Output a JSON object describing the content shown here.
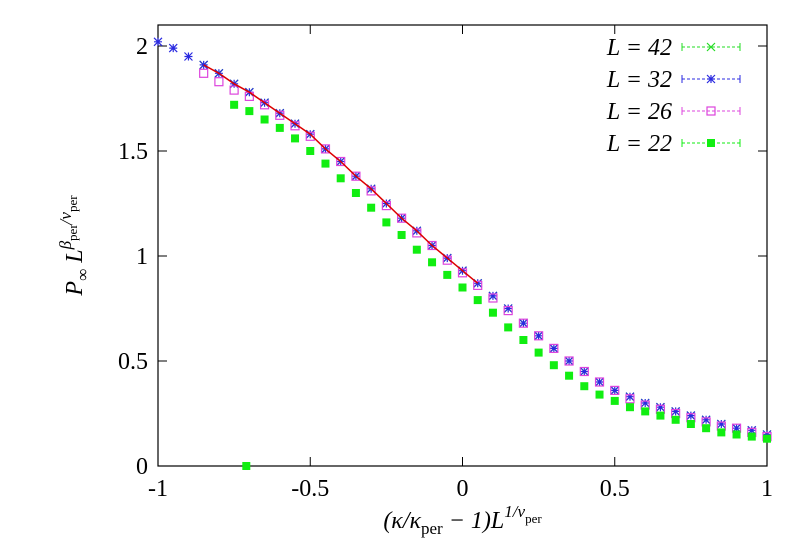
{
  "chart_data": {
    "type": "scatter",
    "xlabel_parts": [
      {
        "text": "(κ/κ",
        "pos": "base"
      },
      {
        "text": "per",
        "pos": "sub"
      },
      {
        "text": " − 1)L",
        "pos": "base"
      },
      {
        "text": "1/ν",
        "pos": "sup"
      },
      {
        "text": "per",
        "pos": "supsub"
      }
    ],
    "ylabel_parts": [
      {
        "text": "P",
        "pos": "base"
      },
      {
        "text": "∞",
        "pos": "sub"
      },
      {
        "text": " L",
        "pos": "base"
      },
      {
        "text": "β",
        "pos": "sup"
      },
      {
        "text": "per",
        "pos": "supsub"
      },
      {
        "text": "/ν",
        "pos": "sup"
      },
      {
        "text": "per",
        "pos": "supsub"
      }
    ],
    "xlim": [
      -1,
      1
    ],
    "xticks": [
      -1,
      -0.5,
      0,
      0.5,
      1
    ],
    "ylim": [
      0,
      2.1
    ],
    "yticks": [
      0,
      0.5,
      1,
      1.5,
      2
    ],
    "legend": "top-right",
    "series": [
      {
        "name": "L = 42",
        "color": "#22dd22",
        "marker": "x",
        "x": [
          -0.85,
          -0.8,
          -0.75,
          -0.7,
          -0.65,
          -0.6,
          -0.55,
          -0.5,
          -0.45,
          -0.4,
          -0.35,
          -0.3,
          -0.25,
          -0.2,
          -0.15,
          -0.1,
          -0.05,
          0,
          0.05,
          0.1,
          0.15,
          0.2,
          0.25,
          0.3,
          0.35,
          0.4,
          0.45,
          0.5,
          0.55,
          0.6,
          0.65,
          0.7,
          0.75,
          0.8,
          0.85,
          0.9,
          0.95,
          1
        ],
        "values": [
          1.91,
          1.87,
          1.82,
          1.78,
          1.73,
          1.68,
          1.63,
          1.58,
          1.51,
          1.45,
          1.38,
          1.32,
          1.25,
          1.18,
          1.12,
          1.05,
          0.99,
          0.93,
          0.87,
          0.81,
          0.75,
          0.68,
          0.62,
          0.56,
          0.5,
          0.45,
          0.4,
          0.36,
          0.33,
          0.3,
          0.28,
          0.26,
          0.24,
          0.22,
          0.2,
          0.18,
          0.17,
          0.15
        ]
      },
      {
        "name": "L = 32",
        "color": "#2a2ae0",
        "marker": "star",
        "x": [
          -1,
          -0.95,
          -0.9,
          -0.85,
          -0.8,
          -0.75,
          -0.7,
          -0.65,
          -0.6,
          -0.55,
          -0.5,
          -0.45,
          -0.4,
          -0.35,
          -0.3,
          -0.25,
          -0.2,
          -0.15,
          -0.1,
          -0.05,
          0,
          0.05,
          0.1,
          0.15,
          0.2,
          0.25,
          0.3,
          0.35,
          0.4,
          0.45,
          0.5,
          0.55,
          0.6,
          0.65,
          0.7,
          0.75,
          0.8,
          0.85,
          0.9,
          0.95,
          1
        ],
        "values": [
          2.02,
          1.99,
          1.95,
          1.91,
          1.87,
          1.82,
          1.78,
          1.73,
          1.68,
          1.63,
          1.58,
          1.51,
          1.45,
          1.38,
          1.32,
          1.25,
          1.18,
          1.12,
          1.05,
          0.99,
          0.93,
          0.87,
          0.81,
          0.75,
          0.68,
          0.62,
          0.56,
          0.5,
          0.45,
          0.4,
          0.36,
          0.33,
          0.3,
          0.28,
          0.26,
          0.24,
          0.22,
          0.2,
          0.18,
          0.17,
          0.15
        ]
      },
      {
        "name": "L = 26",
        "color": "#dd44dd",
        "marker": "square-open",
        "x": [
          -0.85,
          -0.8,
          -0.75,
          -0.7,
          -0.65,
          -0.6,
          -0.55,
          -0.5,
          -0.45,
          -0.4,
          -0.35,
          -0.3,
          -0.25,
          -0.2,
          -0.15,
          -0.1,
          -0.05,
          0,
          0.05,
          0.1,
          0.15,
          0.2,
          0.25,
          0.3,
          0.35,
          0.4,
          0.45,
          0.5,
          0.55,
          0.6,
          0.65,
          0.7,
          0.75,
          0.8,
          0.85,
          0.9,
          0.95,
          1
        ],
        "values": [
          1.87,
          1.83,
          1.79,
          1.76,
          1.72,
          1.67,
          1.62,
          1.57,
          1.51,
          1.45,
          1.38,
          1.31,
          1.24,
          1.18,
          1.11,
          1.05,
          0.98,
          0.92,
          0.86,
          0.8,
          0.74,
          0.68,
          0.62,
          0.56,
          0.5,
          0.45,
          0.4,
          0.36,
          0.32,
          0.29,
          0.27,
          0.25,
          0.23,
          0.21,
          0.19,
          0.18,
          0.16,
          0.14
        ]
      },
      {
        "name": "L = 22",
        "color": "#11ee11",
        "marker": "square",
        "x": [
          -0.75,
          -0.7,
          -0.65,
          -0.6,
          -0.55,
          -0.5,
          -0.45,
          -0.4,
          -0.35,
          -0.3,
          -0.25,
          -0.2,
          -0.15,
          -0.1,
          -0.05,
          0,
          0.05,
          0.1,
          0.15,
          0.2,
          0.25,
          0.3,
          0.35,
          0.4,
          0.45,
          0.5,
          0.55,
          0.6,
          0.65,
          0.7,
          0.75,
          0.8,
          0.85,
          0.9,
          0.95,
          1,
          -0.71
        ],
        "values": [
          1.72,
          1.69,
          1.65,
          1.61,
          1.56,
          1.5,
          1.44,
          1.37,
          1.3,
          1.23,
          1.16,
          1.1,
          1.03,
          0.97,
          0.91,
          0.85,
          0.79,
          0.73,
          0.66,
          0.6,
          0.54,
          0.48,
          0.43,
          0.38,
          0.34,
          0.31,
          0.28,
          0.26,
          0.24,
          0.22,
          0.2,
          0.18,
          0.16,
          0.15,
          0.14,
          0.13,
          0
        ]
      }
    ],
    "fit": {
      "color": "#dd0000",
      "x": [
        -0.85,
        -0.8,
        -0.75,
        -0.7,
        -0.65,
        -0.6,
        -0.55,
        -0.5,
        -0.45,
        -0.4,
        -0.35,
        -0.3,
        -0.25,
        -0.2,
        -0.15,
        -0.1,
        -0.05,
        0,
        0.05
      ],
      "values": [
        1.91,
        1.87,
        1.82,
        1.78,
        1.73,
        1.68,
        1.63,
        1.58,
        1.51,
        1.45,
        1.38,
        1.32,
        1.25,
        1.18,
        1.12,
        1.05,
        0.99,
        0.93,
        0.87
      ]
    }
  }
}
